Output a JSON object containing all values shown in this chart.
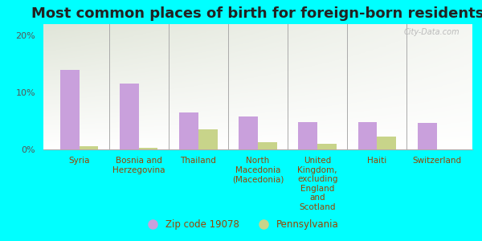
{
  "title": "Most common places of birth for foreign-born residents",
  "categories": [
    "Syria",
    "Bosnia and\nHerzegovina",
    "Thailand",
    "North\nMacedonia\n(Macedonia)",
    "United\nKingdom,\nexcluding\nEngland\nand\nScotland",
    "Haiti",
    "Switzerland"
  ],
  "zip_values": [
    14.0,
    11.5,
    6.5,
    5.8,
    4.8,
    4.8,
    4.6
  ],
  "pa_values": [
    0.5,
    0.3,
    3.5,
    1.2,
    1.0,
    2.3,
    0.0
  ],
  "zip_color": "#c9a0dc",
  "pa_color": "#c8d48a",
  "background_color": "#00ffff",
  "ylim": [
    0,
    22
  ],
  "yticks": [
    0,
    10,
    20
  ],
  "ytick_labels": [
    "0%",
    "10%",
    "20%"
  ],
  "legend_zip_label": "Zip code 19078",
  "legend_pa_label": "Pennsylvania",
  "title_fontsize": 13,
  "tick_fontsize": 8,
  "label_fontsize": 7.5,
  "watermark": "City-Data.com"
}
